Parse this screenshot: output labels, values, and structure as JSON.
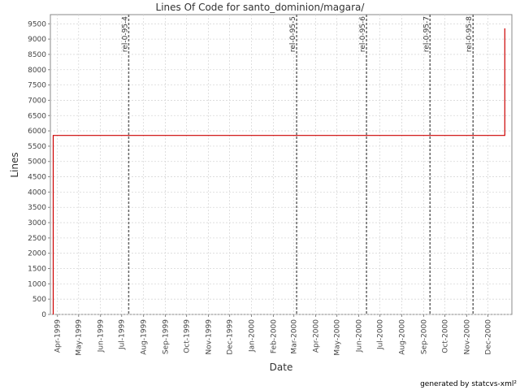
{
  "chart_data": {
    "type": "line",
    "title": "Lines Of Code for santo_dominion/magara/",
    "xlabel": "Date",
    "ylabel": "Lines",
    "x_tick_labels": [
      "Apr-1999",
      "May-1999",
      "Jun-1999",
      "Jul-1999",
      "Aug-1999",
      "Sep-1999",
      "Oct-1999",
      "Nov-1999",
      "Dec-1999",
      "Jan-2000",
      "Feb-2000",
      "Mar-2000",
      "Apr-2000",
      "May-2000",
      "Jun-2000",
      "Jul-2000",
      "Aug-2000",
      "Sep-2000",
      "Oct-2000",
      "Nov-2000",
      "Dec-2000"
    ],
    "ylim": [
      0,
      9800
    ],
    "y_ticks": [
      0,
      500,
      1000,
      1500,
      2000,
      2500,
      3000,
      3500,
      4000,
      4500,
      5000,
      5500,
      6000,
      6500,
      7000,
      7500,
      8000,
      8500,
      9000,
      9500
    ],
    "grid": true,
    "series": [
      {
        "color": "#cc0000",
        "step": true,
        "x": [
          "1999-03-26",
          "1999-03-26",
          "2000-12-25",
          "2000-12-25"
        ],
        "y": [
          0,
          5850,
          5850,
          9350
        ]
      }
    ],
    "markers": [
      {
        "label": "rel-0-95-4",
        "date": "1999-07-11"
      },
      {
        "label": "rel-0-95-5",
        "date": "2000-03-05"
      },
      {
        "label": "rel-0-95-6",
        "date": "2000-06-12"
      },
      {
        "label": "rel-0-95-7",
        "date": "2000-09-10"
      },
      {
        "label": "rel-0-95-8",
        "date": "2000-11-10"
      }
    ]
  },
  "footer": {
    "credit": "generated by statcvs-xml²"
  }
}
